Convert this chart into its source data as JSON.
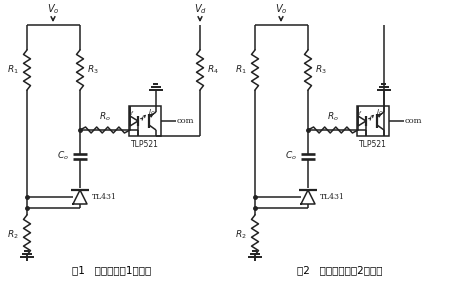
{
  "background_color": "#ffffff",
  "fig_label1": "图1   光耦反馈第1种接法",
  "fig_label2": "图2   光耦反馈的第2种接法",
  "line_color": "#222222",
  "line_width": 1.1,
  "text_color": "#000000",
  "circuit1": {
    "has_vd": true,
    "r4_label": "R_4",
    "vd_label": "V_d"
  },
  "circuit2": {
    "has_vd": false
  }
}
